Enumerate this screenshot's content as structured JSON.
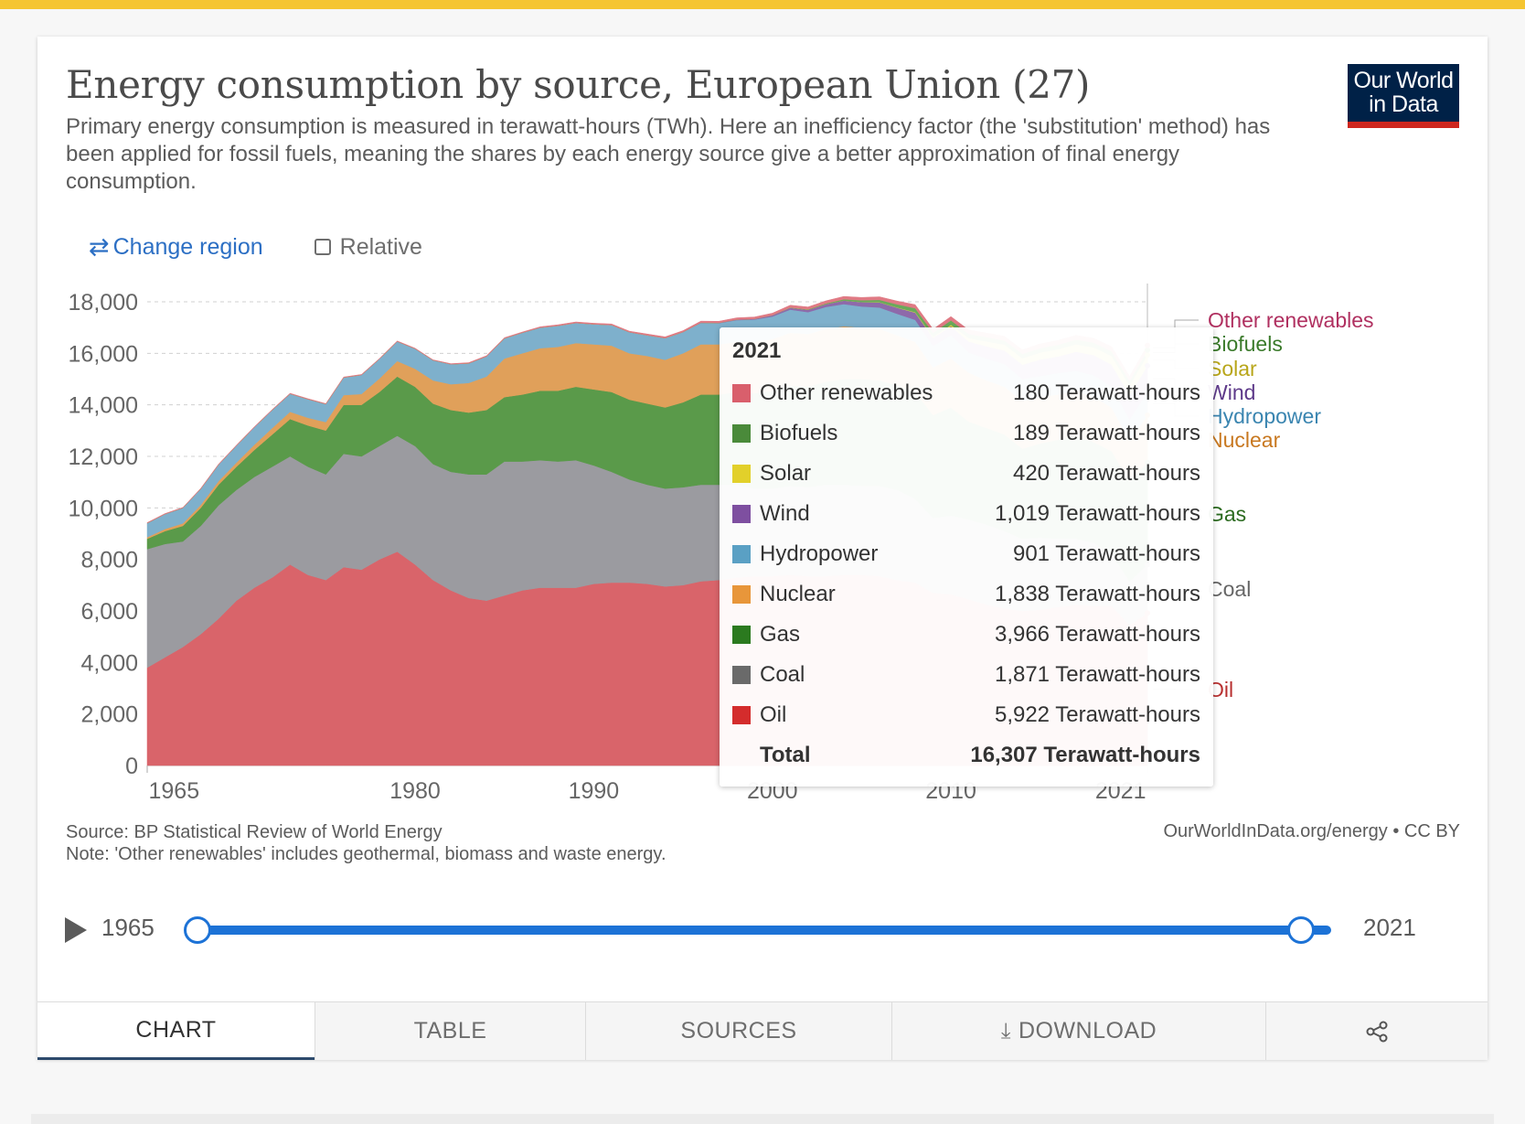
{
  "header": {
    "title": "Energy consumption by source, European Union (27)",
    "subtitle": "Primary energy consumption is measured in terawatt-hours (TWh). Here an inefficiency factor (the 'substitution' method) has been applied for fossil fuels, meaning the shares by each energy source give a better approximation of final energy consumption.",
    "logo": "Our World in Data"
  },
  "controls": {
    "change_region": "Change region",
    "relative": "Relative"
  },
  "tooltip": {
    "year": "2021",
    "rows": [
      {
        "name": "Other renewables",
        "value": "180 Terawatt-hours",
        "color": "#d95f6c"
      },
      {
        "name": "Biofuels",
        "value": "189 Terawatt-hours",
        "color": "#4a8a3a"
      },
      {
        "name": "Solar",
        "value": "420 Terawatt-hours",
        "color": "#e2d02a"
      },
      {
        "name": "Wind",
        "value": "1,019 Terawatt-hours",
        "color": "#7e4fa0"
      },
      {
        "name": "Hydropower",
        "value": "901 Terawatt-hours",
        "color": "#5aa0c4"
      },
      {
        "name": "Nuclear",
        "value": "1,838 Terawatt-hours",
        "color": "#e8963a"
      },
      {
        "name": "Gas",
        "value": "3,966 Terawatt-hours",
        "color": "#2b7a1f"
      },
      {
        "name": "Coal",
        "value": "1,871 Terawatt-hours",
        "color": "#6a6a6a"
      },
      {
        "name": "Oil",
        "value": "5,922 Terawatt-hours",
        "color": "#d42c2c"
      }
    ],
    "total_label": "Total",
    "total_value": "16,307 Terawatt-hours"
  },
  "footer": {
    "source": "Source: BP Statistical Review of World Energy",
    "note": "Note: 'Other renewables' includes geothermal, biomass and waste energy.",
    "credit": "OurWorldInData.org/energy • CC BY"
  },
  "timeline": {
    "start": "1965",
    "end": "2021"
  },
  "tabs": {
    "chart": "CHART",
    "table": "TABLE",
    "sources": "SOURCES",
    "download": "DOWNLOAD"
  },
  "chart_data": {
    "type": "area",
    "title": "Energy consumption by source, European Union (27)",
    "xlim": [
      1965,
      2021
    ],
    "ylim": [
      0,
      18000
    ],
    "yticks": [
      0,
      2000,
      4000,
      6000,
      8000,
      10000,
      12000,
      14000,
      16000,
      18000
    ],
    "xtick_labels": [
      "1965",
      "1980",
      "1990",
      "2000",
      "2010",
      "2021"
    ],
    "xtick_values": [
      1966.5,
      1980,
      1990,
      2000,
      2010,
      2019.5
    ],
    "grid": "horizontal-dashed",
    "legend": "right",
    "x": [
      1965,
      1966,
      1967,
      1968,
      1969,
      1970,
      1971,
      1972,
      1973,
      1974,
      1975,
      1976,
      1977,
      1978,
      1979,
      1980,
      1981,
      1982,
      1983,
      1984,
      1985,
      1986,
      1987,
      1988,
      1989,
      1990,
      1991,
      1992,
      1993,
      1994,
      1995,
      1996,
      1997,
      1998,
      1999,
      2000,
      2001,
      2002,
      2003,
      2004,
      2005,
      2006,
      2007,
      2008,
      2009,
      2010,
      2011,
      2012,
      2013,
      2014,
      2015,
      2016,
      2017,
      2018,
      2019,
      2020,
      2021
    ],
    "series": [
      {
        "name": "Oil",
        "color": "#d9646a",
        "values": [
          3800,
          4200,
          4600,
          5100,
          5700,
          6400,
          6900,
          7300,
          7800,
          7400,
          7200,
          7700,
          7600,
          8000,
          8300,
          7800,
          7200,
          6800,
          6500,
          6400,
          6600,
          6800,
          6900,
          6900,
          6900,
          7050,
          7100,
          7100,
          7050,
          6950,
          7000,
          7150,
          7200,
          7300,
          7350,
          7350,
          7400,
          7350,
          7350,
          7400,
          7400,
          7350,
          7200,
          7100,
          6700,
          6650,
          6450,
          6250,
          6100,
          6000,
          6050,
          6150,
          6250,
          6200,
          6200,
          5450,
          5922
        ]
      },
      {
        "name": "Coal",
        "color": "#9b9ba0",
        "values": [
          4600,
          4400,
          4100,
          4200,
          4400,
          4300,
          4300,
          4300,
          4200,
          4200,
          4100,
          4400,
          4400,
          4400,
          4500,
          4600,
          4500,
          4600,
          4800,
          4900,
          5200,
          5000,
          4950,
          4900,
          4950,
          4600,
          4300,
          4000,
          3850,
          3800,
          3800,
          3750,
          3700,
          3600,
          3400,
          3400,
          3450,
          3450,
          3550,
          3500,
          3450,
          3500,
          3500,
          3250,
          2900,
          3050,
          3100,
          3100,
          3000,
          2800,
          2800,
          2650,
          2550,
          2450,
          2000,
          1700,
          1871
        ]
      },
      {
        "name": "Gas",
        "color": "#5a9a4a",
        "values": [
          400,
          500,
          600,
          700,
          800,
          900,
          1050,
          1250,
          1450,
          1600,
          1700,
          1900,
          2000,
          2100,
          2300,
          2300,
          2350,
          2400,
          2400,
          2500,
          2500,
          2600,
          2700,
          2750,
          2850,
          2950,
          3100,
          3100,
          3150,
          3150,
          3300,
          3500,
          3500,
          3600,
          3700,
          3800,
          3900,
          3900,
          4000,
          4100,
          4150,
          4100,
          4050,
          4150,
          4000,
          4200,
          3800,
          3750,
          3750,
          3500,
          3650,
          3850,
          4000,
          3900,
          4000,
          3900,
          3966
        ]
      },
      {
        "name": "Nuclear",
        "color": "#e0a05a",
        "values": [
          60,
          80,
          100,
          120,
          140,
          160,
          200,
          250,
          280,
          300,
          330,
          380,
          420,
          520,
          600,
          700,
          900,
          1000,
          1150,
          1300,
          1500,
          1600,
          1650,
          1700,
          1700,
          1750,
          1800,
          1800,
          1850,
          1850,
          1900,
          1950,
          1950,
          1950,
          2000,
          2000,
          2050,
          2050,
          2050,
          2050,
          2000,
          2000,
          1950,
          1950,
          1850,
          1900,
          1900,
          1850,
          1850,
          1850,
          1800,
          1750,
          1750,
          1750,
          1700,
          1550,
          1838
        ]
      },
      {
        "name": "Hydropower",
        "color": "#7eb0cc",
        "values": [
          550,
          580,
          600,
          620,
          640,
          660,
          680,
          700,
          700,
          720,
          700,
          680,
          740,
          760,
          760,
          780,
          780,
          780,
          760,
          780,
          780,
          800,
          800,
          820,
          780,
          780,
          800,
          820,
          800,
          840,
          830,
          830,
          820,
          840,
          860,
          880,
          900,
          850,
          850,
          860,
          820,
          830,
          830,
          850,
          840,
          900,
          780,
          850,
          880,
          850,
          820,
          830,
          770,
          850,
          800,
          830,
          901
        ]
      },
      {
        "name": "Wind",
        "color": "#8e6aaa",
        "values": [
          0,
          0,
          0,
          0,
          0,
          0,
          0,
          0,
          0,
          0,
          0,
          0,
          0,
          0,
          0,
          0,
          0,
          0,
          0,
          0,
          0,
          0,
          0,
          0,
          0,
          0,
          0,
          0,
          0,
          0,
          0,
          10,
          15,
          20,
          30,
          50,
          70,
          90,
          110,
          140,
          170,
          200,
          240,
          280,
          310,
          350,
          430,
          470,
          530,
          560,
          640,
          650,
          740,
          780,
          860,
          950,
          1019
        ]
      },
      {
        "name": "Solar",
        "color": "#e8d84a",
        "values": [
          0,
          0,
          0,
          0,
          0,
          0,
          0,
          0,
          0,
          0,
          0,
          0,
          0,
          0,
          0,
          0,
          0,
          0,
          0,
          0,
          0,
          0,
          0,
          0,
          0,
          0,
          0,
          0,
          0,
          0,
          0,
          0,
          0,
          0,
          0,
          0,
          0,
          0,
          0,
          0,
          0,
          5,
          10,
          20,
          40,
          60,
          130,
          190,
          230,
          250,
          270,
          280,
          290,
          300,
          330,
          370,
          420
        ]
      },
      {
        "name": "Biofuels",
        "color": "#6aaa5a",
        "values": [
          0,
          0,
          0,
          0,
          0,
          0,
          0,
          0,
          0,
          0,
          0,
          0,
          0,
          0,
          0,
          0,
          0,
          0,
          0,
          0,
          0,
          0,
          0,
          0,
          0,
          0,
          0,
          0,
          0,
          0,
          0,
          0,
          0,
          0,
          0,
          0,
          10,
          20,
          30,
          50,
          70,
          90,
          120,
          150,
          160,
          170,
          165,
          170,
          160,
          170,
          170,
          175,
          180,
          185,
          190,
          180,
          189
        ]
      },
      {
        "name": "Other renewables",
        "color": "#e07a84",
        "values": [
          20,
          20,
          20,
          20,
          20,
          20,
          20,
          20,
          20,
          20,
          20,
          20,
          20,
          20,
          20,
          20,
          20,
          20,
          30,
          30,
          30,
          30,
          30,
          40,
          40,
          40,
          40,
          40,
          50,
          50,
          50,
          60,
          60,
          70,
          70,
          80,
          90,
          90,
          100,
          110,
          110,
          120,
          130,
          140,
          140,
          150,
          150,
          160,
          160,
          160,
          170,
          170,
          170,
          170,
          180,
          180,
          180
        ]
      }
    ]
  }
}
